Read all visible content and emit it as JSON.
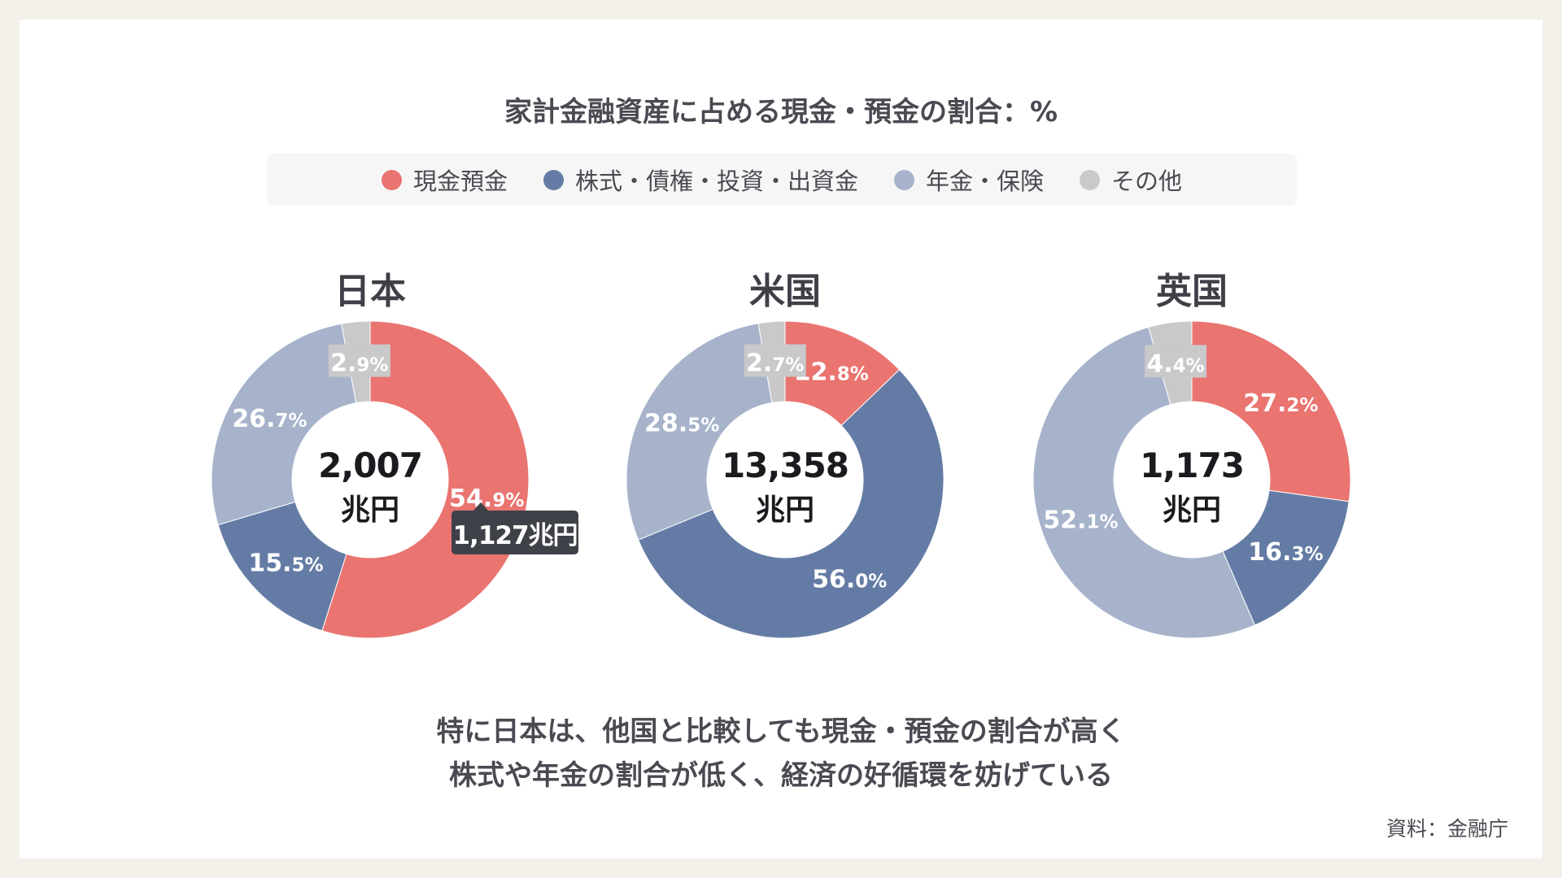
{
  "title": "家計金融資産に占める現金・預金の割合：%",
  "colors": {
    "cash": "#e97470",
    "stocks": "#647ca5",
    "pension": "#a6b3cb",
    "other": "#c9c9cb"
  },
  "legend": [
    {
      "label": "現金預金",
      "color": "#e97470"
    },
    {
      "label": "株式・債権・投資・出資金",
      "color": "#647ca5"
    },
    {
      "label": "年金・保険",
      "color": "#a6b3cb"
    },
    {
      "label": "その他",
      "color": "#c9c9cb"
    }
  ],
  "chart_data": [
    {
      "type": "pie",
      "title": "日本",
      "categories": [
        "現金預金",
        "株式・債権・投資・出資金",
        "年金・保険",
        "その他"
      ],
      "values": [
        54.9,
        15.5,
        26.7,
        2.9
      ],
      "labels": [
        [
          "54.",
          "9%"
        ],
        [
          "15.",
          "5%"
        ],
        [
          "26.",
          "7%"
        ],
        [
          "2.",
          "9%"
        ]
      ],
      "total": "2,007",
      "unit": "兆円",
      "callout": "1,127兆円"
    },
    {
      "type": "pie",
      "title": "米国",
      "categories": [
        "現金預金",
        "株式・債権・投資・出資金",
        "年金・保険",
        "その他"
      ],
      "values": [
        12.8,
        56.0,
        28.5,
        2.7
      ],
      "labels": [
        [
          "12.",
          "8%"
        ],
        [
          "56.",
          "0%"
        ],
        [
          "28.",
          "5%"
        ],
        [
          "2.",
          "7%"
        ]
      ],
      "total": "13,358",
      "unit": "兆円"
    },
    {
      "type": "pie",
      "title": "英国",
      "categories": [
        "現金預金",
        "株式・債権・投資・出資金",
        "年金・保険",
        "その他"
      ],
      "values": [
        27.2,
        16.3,
        52.1,
        4.4
      ],
      "labels": [
        [
          "27.",
          "2%"
        ],
        [
          "16.",
          "3%"
        ],
        [
          "52.",
          "1%"
        ],
        [
          "4.",
          "4%"
        ]
      ],
      "total": "1,173",
      "unit": "兆円"
    }
  ],
  "message": {
    "line1": "特に日本は、他国と比較しても現金・預金の割合が高く",
    "line2": "株式や年金の割合が低く、経済の好循環を妨げている"
  },
  "source": "資料：金融庁"
}
